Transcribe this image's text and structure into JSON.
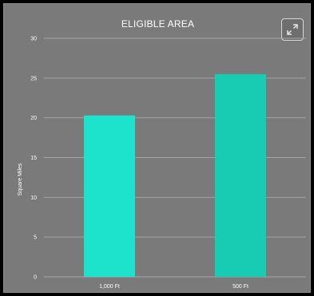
{
  "panel": {
    "expand_icon": "expand-arrows-icon"
  },
  "colors": {
    "background": "#7a7a7a",
    "gridline": "#a5a5a5",
    "bar_1": "#1de3cc",
    "bar_2": "#18ccb4",
    "text": "#ffffff"
  },
  "chart_data": {
    "type": "bar",
    "title": "ELIGIBLE AREA",
    "xlabel": "",
    "ylabel": "Square Miles",
    "categories": [
      "1,000 Ft",
      "500 Ft"
    ],
    "values": [
      20.3,
      25.5
    ],
    "ylim": [
      0,
      30
    ],
    "yticks": [
      "0",
      "5",
      "10",
      "15",
      "20",
      "25",
      "30"
    ],
    "grid": true
  }
}
